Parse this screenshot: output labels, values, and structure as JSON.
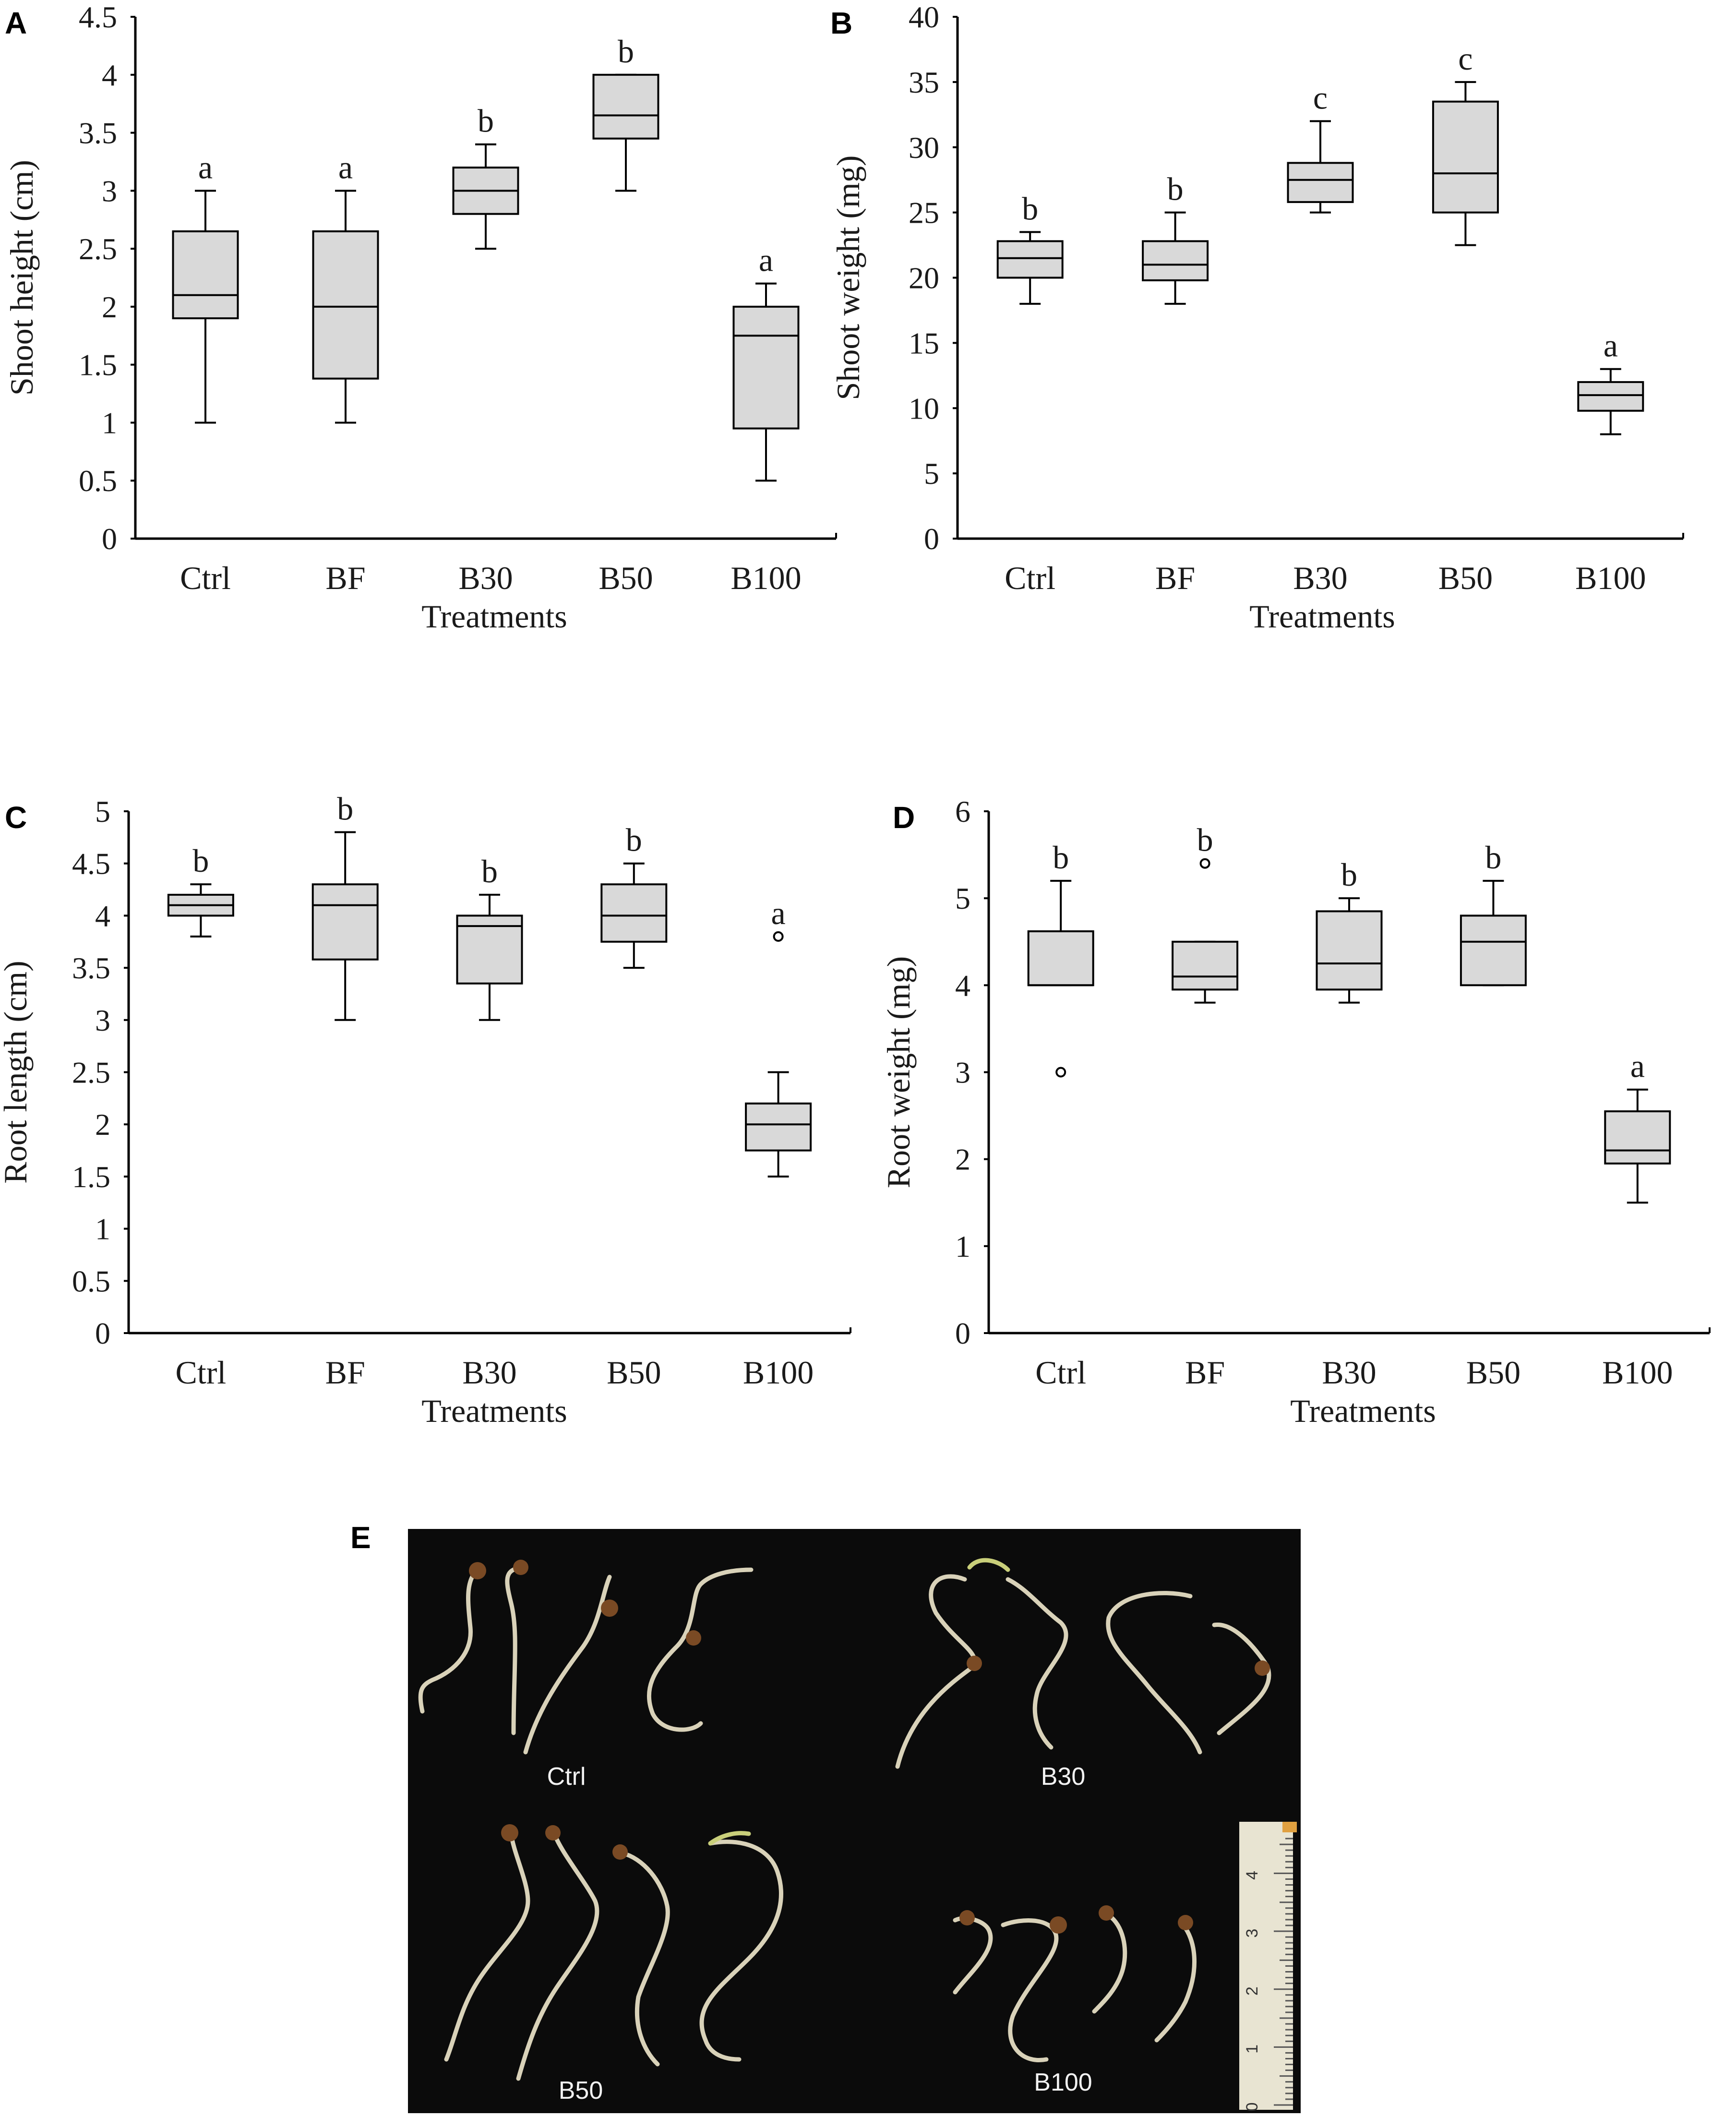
{
  "figure": {
    "panels": {
      "A": "A",
      "B": "B",
      "C": "C",
      "D": "D",
      "E": "E"
    },
    "photo": {
      "labels": [
        "Ctrl",
        "B30",
        "B50",
        "B100"
      ],
      "ruler_numbers": [
        "0",
        "1",
        "2",
        "3",
        "4"
      ],
      "background": "#0b0b0b",
      "seedling_color": "#d9d2b9",
      "seed_color": "#7a4a24"
    }
  },
  "chart_data": [
    {
      "panel": "A",
      "type": "box",
      "xlabel": "Treatments",
      "ylabel": "Shoot height (cm)",
      "ylim": [
        0,
        4.5
      ],
      "yticks": [
        "0",
        "0.5",
        "1",
        "1.5",
        "2",
        "2.5",
        "3",
        "3.5",
        "4",
        "4.5"
      ],
      "categories": [
        "Ctrl",
        "BF",
        "B30",
        "B50",
        "B100"
      ],
      "boxes": [
        {
          "min": 1.0,
          "q1": 1.9,
          "median": 2.1,
          "q3": 2.65,
          "max": 3.0,
          "letter": "a",
          "outliers": []
        },
        {
          "min": 1.0,
          "q1": 1.38,
          "median": 2.0,
          "q3": 2.65,
          "max": 3.0,
          "letter": "a",
          "outliers": []
        },
        {
          "min": 2.5,
          "q1": 2.8,
          "median": 3.0,
          "q3": 3.2,
          "max": 3.4,
          "letter": "b",
          "outliers": []
        },
        {
          "min": 3.0,
          "q1": 3.45,
          "median": 3.65,
          "q3": 4.0,
          "max": 4.0,
          "letter": "b",
          "outliers": []
        },
        {
          "min": 0.5,
          "q1": 0.95,
          "median": 1.75,
          "q3": 2.0,
          "max": 2.2,
          "letter": "a",
          "outliers": []
        }
      ],
      "box_fill": "#d9d9d9"
    },
    {
      "panel": "B",
      "type": "box",
      "xlabel": "Treatments",
      "ylabel": "Shoot weight (mg)",
      "ylim": [
        0,
        40
      ],
      "yticks": [
        "0",
        "5",
        "10",
        "15",
        "20",
        "25",
        "30",
        "35",
        "40"
      ],
      "categories": [
        "Ctrl",
        "BF",
        "B30",
        "B50",
        "B100"
      ],
      "boxes": [
        {
          "min": 18.0,
          "q1": 20.0,
          "median": 21.5,
          "q3": 22.8,
          "max": 23.5,
          "letter": "b",
          "outliers": []
        },
        {
          "min": 18.0,
          "q1": 19.8,
          "median": 21.0,
          "q3": 22.8,
          "max": 25.0,
          "letter": "b",
          "outliers": []
        },
        {
          "min": 25.0,
          "q1": 25.8,
          "median": 27.5,
          "q3": 28.8,
          "max": 32.0,
          "letter": "c",
          "outliers": []
        },
        {
          "min": 22.5,
          "q1": 25.0,
          "median": 28.0,
          "q3": 33.5,
          "max": 35.0,
          "letter": "c",
          "outliers": []
        },
        {
          "min": 8.0,
          "q1": 9.8,
          "median": 11.0,
          "q3": 12.0,
          "max": 13.0,
          "letter": "a",
          "outliers": []
        }
      ],
      "box_fill": "#d9d9d9"
    },
    {
      "panel": "C",
      "type": "box",
      "xlabel": "Treatments",
      "ylabel": "Root length (cm)",
      "ylim": [
        0,
        5
      ],
      "yticks": [
        "0",
        "0.5",
        "1",
        "1.5",
        "2",
        "2.5",
        "3",
        "3.5",
        "4",
        "4.5",
        "5"
      ],
      "categories": [
        "Ctrl",
        "BF",
        "B30",
        "B50",
        "B100"
      ],
      "boxes": [
        {
          "min": 3.8,
          "q1": 4.0,
          "median": 4.1,
          "q3": 4.2,
          "max": 4.3,
          "letter": "b",
          "outliers": []
        },
        {
          "min": 3.0,
          "q1": 3.58,
          "median": 4.1,
          "q3": 4.3,
          "max": 4.8,
          "letter": "b",
          "outliers": []
        },
        {
          "min": 3.0,
          "q1": 3.35,
          "median": 3.9,
          "q3": 4.0,
          "max": 4.2,
          "letter": "b",
          "outliers": []
        },
        {
          "min": 3.5,
          "q1": 3.75,
          "median": 4.0,
          "q3": 4.3,
          "max": 4.5,
          "letter": "b",
          "outliers": []
        },
        {
          "min": 1.5,
          "q1": 1.75,
          "median": 2.0,
          "q3": 2.2,
          "max": 2.5,
          "letter": "a",
          "outliers": [
            3.8
          ]
        }
      ],
      "box_fill": "#d9d9d9"
    },
    {
      "panel": "D",
      "type": "box",
      "xlabel": "Treatments",
      "ylabel": "Root weight (mg)",
      "ylim": [
        0,
        6
      ],
      "yticks": [
        "0",
        "1",
        "2",
        "3",
        "4",
        "5",
        "6"
      ],
      "categories": [
        "Ctrl",
        "BF",
        "B30",
        "B50",
        "B100"
      ],
      "boxes": [
        {
          "min": 4.0,
          "q1": 4.0,
          "median": 4.0,
          "q3": 4.62,
          "max": 5.2,
          "letter": "b",
          "outliers": [
            3.0
          ]
        },
        {
          "min": 3.8,
          "q1": 3.95,
          "median": 4.1,
          "q3": 4.5,
          "max": 4.5,
          "letter": "b",
          "outliers": [
            5.4
          ]
        },
        {
          "min": 3.8,
          "q1": 3.95,
          "median": 4.25,
          "q3": 4.85,
          "max": 5.0,
          "letter": "b",
          "outliers": []
        },
        {
          "min": 4.0,
          "q1": 4.0,
          "median": 4.5,
          "q3": 4.8,
          "max": 5.2,
          "letter": "b",
          "outliers": []
        },
        {
          "min": 1.5,
          "q1": 1.95,
          "median": 2.1,
          "q3": 2.55,
          "max": 2.8,
          "letter": "a",
          "outliers": []
        }
      ],
      "box_fill": "#d9d9d9"
    }
  ]
}
